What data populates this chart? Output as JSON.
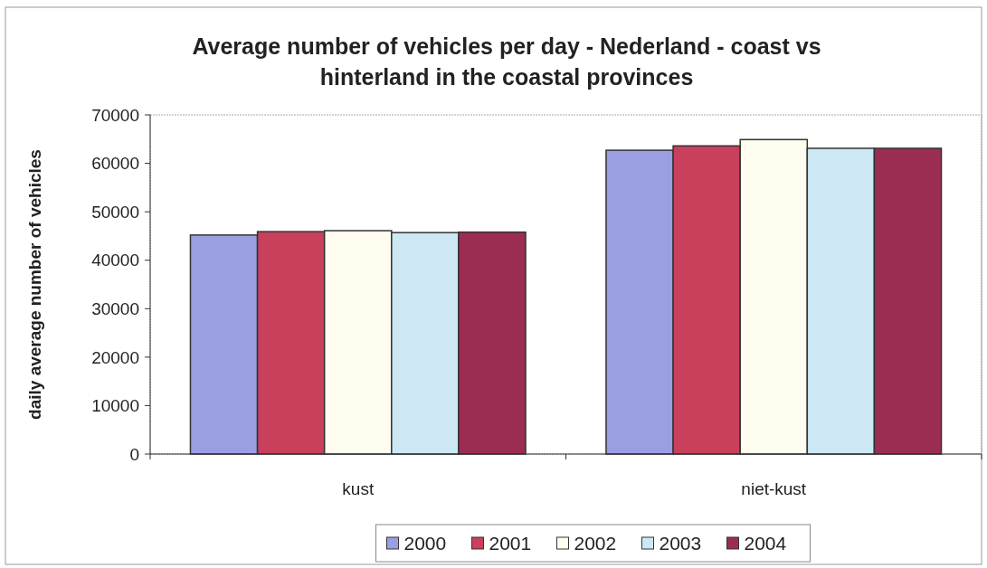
{
  "chart_data": {
    "type": "bar",
    "title": "Average number of vehicles per day - Nederland - coast vs hinterland in the coastal provinces",
    "ylabel": "daily average number of vehicles",
    "categories": [
      "kust",
      "niet-kust"
    ],
    "series": [
      {
        "name": "2000",
        "color": "#9a9ee2",
        "values": [
          45200,
          62700
        ]
      },
      {
        "name": "2001",
        "color": "#c8405c",
        "values": [
          45900,
          63600
        ]
      },
      {
        "name": "2002",
        "color": "#fffdf0",
        "values": [
          46100,
          64900
        ]
      },
      {
        "name": "2003",
        "color": "#cde8f4",
        "values": [
          45700,
          63100
        ]
      },
      {
        "name": "2004",
        "color": "#9b2d52",
        "values": [
          45800,
          63100
        ]
      }
    ],
    "ylim": [
      0,
      70000
    ],
    "yticks": [
      0,
      10000,
      20000,
      30000,
      40000,
      50000,
      60000,
      70000
    ],
    "grid": false,
    "legend": "bottom"
  }
}
